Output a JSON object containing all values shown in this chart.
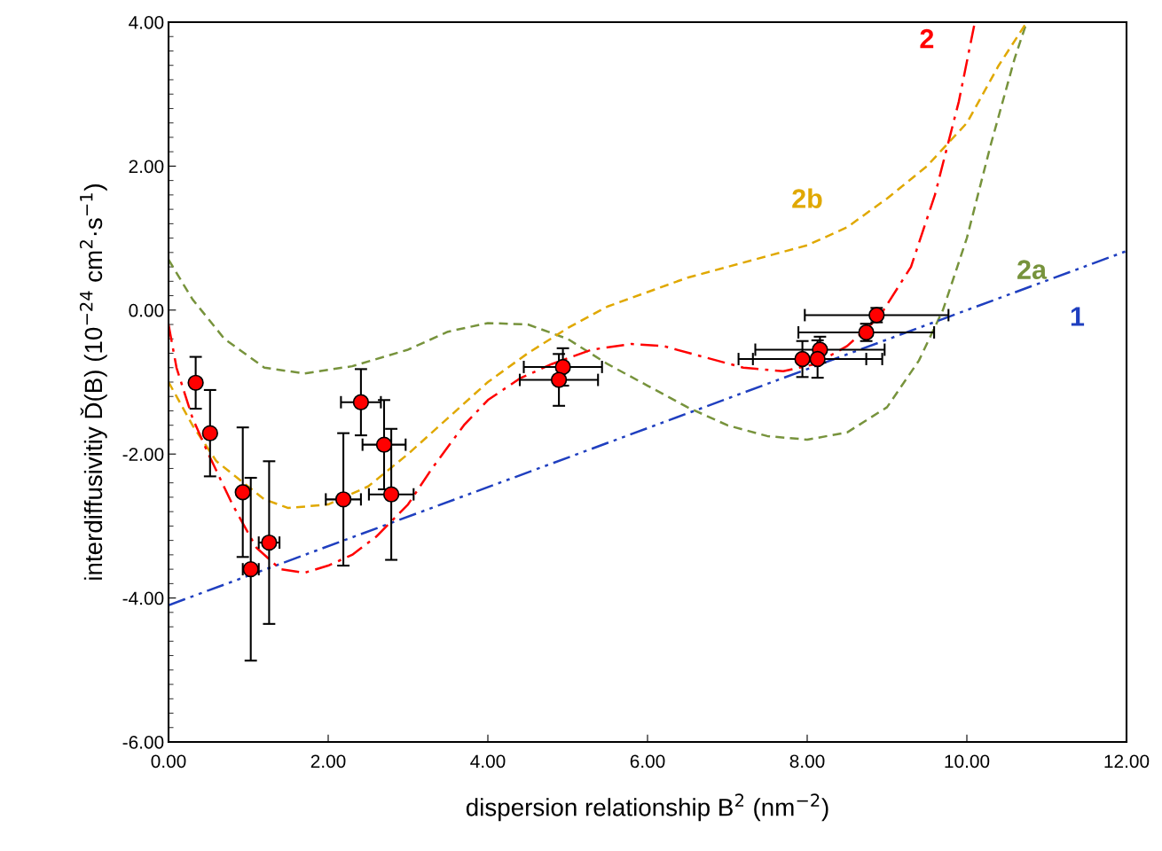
{
  "chart_data": {
    "type": "line",
    "xlabel": "dispersion relationship B$^{2}$ (nm$^{−2}$)",
    "ylabel": "interdiffusivitiy Ď(B) (10$^{−24}$ cm$^{2}$·s$^{−1}$)",
    "xlim": [
      0,
      12
    ],
    "ylim": [
      -6,
      4
    ],
    "xticks": [
      {
        "value": 0,
        "label": "0.00"
      },
      {
        "value": 2,
        "label": "2.00"
      },
      {
        "value": 4,
        "label": "4.00"
      },
      {
        "value": 6,
        "label": "6.00"
      },
      {
        "value": 8,
        "label": "8.00"
      },
      {
        "value": 10,
        "label": "10.00"
      },
      {
        "value": 12,
        "label": "12.00"
      }
    ],
    "yticks": [
      {
        "value": -6,
        "label": "-6.00"
      },
      {
        "value": -4,
        "label": "-4.00"
      },
      {
        "value": -2,
        "label": "-2.00"
      },
      {
        "value": 0,
        "label": "0.00"
      },
      {
        "value": 2,
        "label": "2.00"
      },
      {
        "value": 4,
        "label": "4.00"
      }
    ],
    "grid": false,
    "legend": false,
    "marker": "none",
    "series": [
      {
        "name": "2a",
        "color": "#77933c",
        "line_style": "dashed",
        "x": [
          0,
          0.3,
          0.7,
          1.2,
          1.7,
          2.3,
          3.0,
          3.5,
          4.0,
          4.5,
          5.0,
          5.5,
          6.0,
          6.5,
          7.0,
          7.5,
          8.0,
          8.5,
          9.0,
          9.4,
          9.7,
          10.0,
          10.3,
          10.6,
          10.75
        ],
        "values": [
          0.7,
          0.15,
          -0.4,
          -0.8,
          -0.88,
          -0.78,
          -0.55,
          -0.3,
          -0.18,
          -0.2,
          -0.4,
          -0.75,
          -1.05,
          -1.35,
          -1.6,
          -1.75,
          -1.8,
          -1.7,
          -1.35,
          -0.7,
          0.0,
          1.0,
          2.3,
          3.5,
          4.0
        ]
      },
      {
        "name": "2b",
        "color": "#e0a800",
        "line_style": "dashed",
        "x": [
          0,
          0.3,
          0.6,
          1.2,
          1.5,
          2.0,
          2.5,
          3.0,
          3.5,
          4.0,
          4.5,
          5.0,
          5.5,
          6.0,
          6.5,
          7.0,
          7.5,
          8.0,
          8.5,
          9.0,
          9.5,
          10.0,
          10.4,
          10.75
        ],
        "values": [
          -1.0,
          -1.6,
          -2.1,
          -2.63,
          -2.75,
          -2.7,
          -2.45,
          -2.0,
          -1.5,
          -1.0,
          -0.6,
          -0.25,
          0.05,
          0.25,
          0.45,
          0.6,
          0.75,
          0.9,
          1.15,
          1.55,
          2.0,
          2.6,
          3.4,
          4.0
        ]
      },
      {
        "name": "1",
        "color": "#1f3fbf",
        "line_style": "dashdotdot",
        "x": [
          0,
          12
        ],
        "values": [
          -4.1,
          0.82
        ]
      },
      {
        "name": "2",
        "color": "#ff0000",
        "line_style": "dashdot",
        "x": [
          0,
          0.1,
          0.3,
          0.5,
          0.8,
          1.1,
          1.4,
          1.7,
          2.0,
          2.3,
          2.6,
          3.0,
          3.3,
          3.7,
          4.0,
          4.4,
          4.8,
          5.3,
          5.8,
          6.2,
          6.7,
          7.2,
          7.7,
          8.1,
          8.5,
          8.9,
          9.3,
          9.6,
          9.9,
          10.1
        ],
        "values": [
          -0.2,
          -0.8,
          -1.5,
          -2.0,
          -2.7,
          -3.3,
          -3.6,
          -3.65,
          -3.55,
          -3.4,
          -3.15,
          -2.7,
          -2.2,
          -1.6,
          -1.25,
          -0.95,
          -0.75,
          -0.55,
          -0.47,
          -0.5,
          -0.65,
          -0.8,
          -0.85,
          -0.75,
          -0.5,
          -0.1,
          0.6,
          1.6,
          2.9,
          4.0
        ]
      },
      {
        "type": "scatter",
        "color": "#ff0000",
        "marker": "circle",
        "x": [
          0.34,
          0.52,
          0.93,
          1.03,
          1.26,
          2.19,
          2.41,
          2.7,
          2.79,
          4.94,
          4.89,
          7.94,
          8.16,
          8.13,
          8.74,
          8.87
        ],
        "values": [
          -1.01,
          -1.71,
          -2.53,
          -3.6,
          -3.23,
          -2.63,
          -1.28,
          -1.87,
          -2.56,
          -0.79,
          -0.97,
          -0.68,
          -0.55,
          -0.68,
          -0.31,
          -0.07
        ],
        "errors": [
          0.36,
          0.6,
          0.9,
          1.27,
          1.13,
          0.92,
          0.46,
          0.62,
          0.91,
          0.26,
          0.36,
          0.25,
          0.18,
          0.26,
          0.12,
          0.1
        ],
        "xerrors": [
          null,
          null,
          null,
          0.1,
          0.13,
          0.22,
          0.25,
          0.27,
          0.28,
          0.49,
          0.49,
          0.8,
          0.81,
          0.81,
          0.85,
          0.9
        ]
      }
    ]
  }
}
